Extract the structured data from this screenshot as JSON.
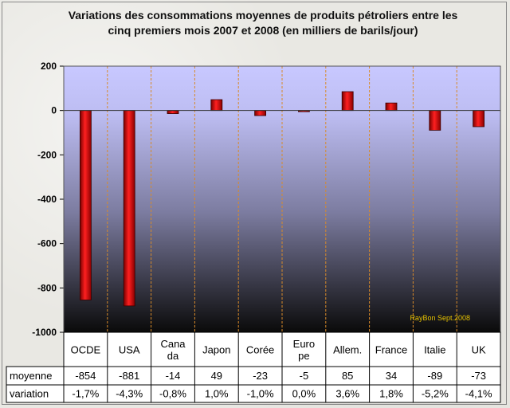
{
  "chart_data": {
    "type": "bar",
    "title": "Variations des consommations moyennes  de produits pétroliers entre les cinq premiers mois 2007 et 2008 (en milliers de barils/jour)",
    "title_lines": [
      "Variations des consommations moyennes  de produits pétroliers entre les",
      "cinq premiers mois 2007 et 2008 (en milliers de barils/jour)"
    ],
    "categories": [
      "OCDE",
      "USA",
      "Cana da",
      "Japon",
      "Corée",
      "Euro pe",
      "Allem.",
      "France",
      "Italie",
      "UK"
    ],
    "category_lines": [
      [
        "OCDE"
      ],
      [
        "USA"
      ],
      [
        "Cana",
        "da"
      ],
      [
        "Japon"
      ],
      [
        "Corée"
      ],
      [
        "Euro",
        "pe"
      ],
      [
        "Allem."
      ],
      [
        "France"
      ],
      [
        "Italie"
      ],
      [
        "UK"
      ]
    ],
    "series": [
      {
        "name": "moyenne",
        "values": [
          -854,
          -881,
          -14,
          49,
          -23,
          -5,
          85,
          34,
          -89,
          -73
        ],
        "labels": [
          "-854",
          "-881",
          "-14",
          "49",
          "-23",
          "-5",
          "85",
          "34",
          "-89",
          "-73"
        ],
        "color": "#cc0000"
      }
    ],
    "variation": {
      "name": "variation",
      "labels": [
        "-1,7%",
        "-4,3%",
        "-0,8%",
        "1,0%",
        "-1,0%",
        "0,0%",
        "3,6%",
        "1,8%",
        "-5,2%",
        "-4,1%"
      ]
    },
    "ylim": [
      -1000,
      200
    ],
    "yticks": [
      200,
      0,
      -200,
      -400,
      -600,
      -800,
      -1000
    ],
    "ytick_labels": [
      "200",
      "0",
      "-200",
      "-400",
      "-600",
      "-800",
      "-1000"
    ],
    "annotation": "RayBon Sept.2008",
    "grid": "vertical-dashed",
    "colors": {
      "bar": "#cc0000",
      "plot_top": "#c8c8ff",
      "plot_bottom": "#0a0a0a",
      "annotation": "#e6c200"
    }
  }
}
